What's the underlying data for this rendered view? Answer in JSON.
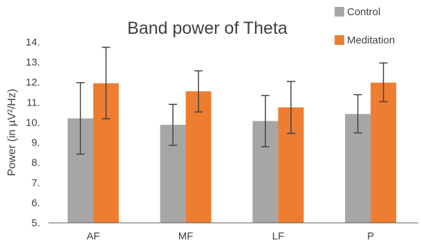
{
  "chart_data": {
    "type": "bar",
    "title": "Band power of Theta",
    "xlabel": "",
    "ylabel": "Power (in µV²/Hz)",
    "categories": [
      "AF",
      "MF",
      "LF",
      "P"
    ],
    "ylim": [
      5,
      14
    ],
    "yticks": [
      "5.",
      "6.",
      "7.",
      "8.",
      "9.",
      "10.",
      "11.",
      "12.",
      "13.",
      "14."
    ],
    "grid": false,
    "legend_position": "top-right",
    "series": [
      {
        "name": "Control",
        "color": "#a6a6a6",
        "values": [
          10.2,
          9.88,
          10.07,
          10.42
        ],
        "error_low": [
          8.42,
          8.86,
          8.79,
          9.48
        ],
        "error_high": [
          11.98,
          10.9,
          11.34,
          11.38
        ]
      },
      {
        "name": "Meditation",
        "color": "#ed7d31",
        "values": [
          11.95,
          11.55,
          10.75,
          11.98
        ],
        "error_low": [
          10.18,
          10.52,
          9.45,
          11.03
        ],
        "error_high": [
          13.74,
          12.57,
          12.04,
          12.96
        ]
      }
    ]
  }
}
